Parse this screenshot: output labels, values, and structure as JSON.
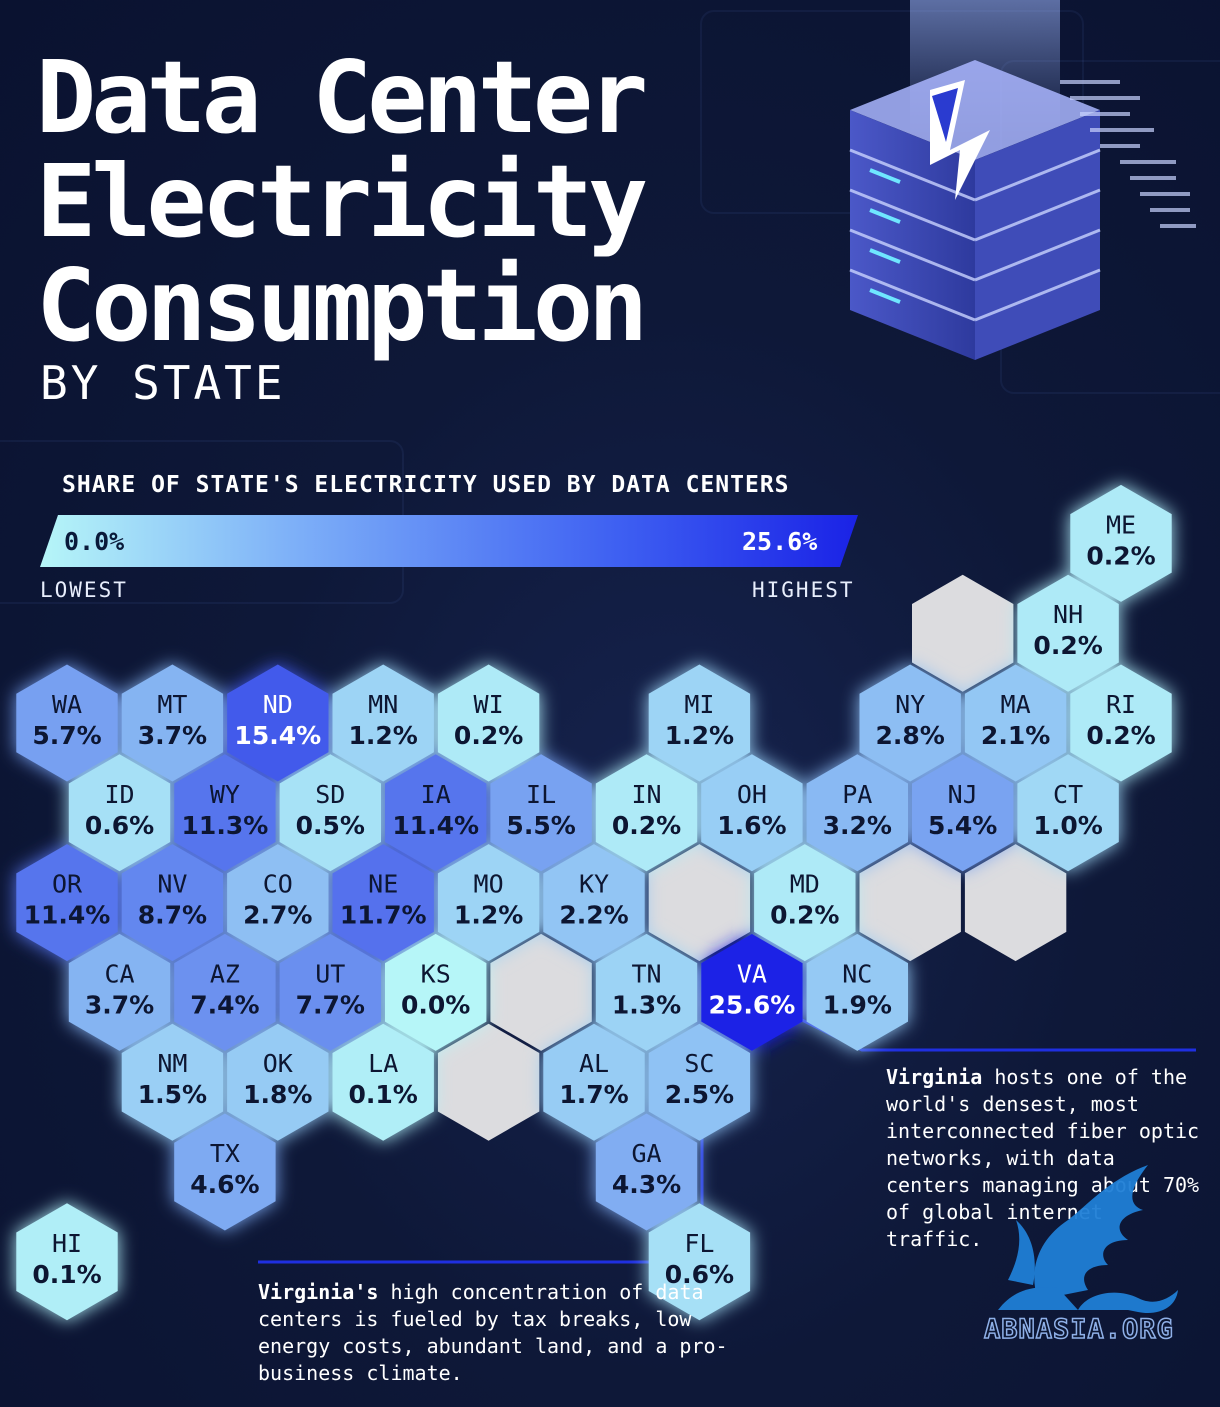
{
  "title": {
    "line1": "Data Center",
    "line2": "Electricity",
    "line3": "Consumption",
    "subtitle": "BY STATE"
  },
  "legend": {
    "title": "SHARE OF STATE'S ELECTRICITY USED BY DATA CENTERS",
    "min_label": "0.0%",
    "max_label": "25.6%",
    "low_text": "LOWEST",
    "high_text": "HIGHEST",
    "color_low": "#b6f6f8",
    "color_high": "#1a22e6"
  },
  "chart_data": {
    "type": "hex tile map",
    "title": "Data Center Electricity Consumption by State",
    "metric": "Share of state's electricity used by data centers (%)",
    "range": [
      0.0,
      25.6
    ],
    "states": [
      {
        "abbr": "ME",
        "value": "0.2%"
      },
      {
        "abbr": "NH",
        "value": "0.2%"
      },
      {
        "abbr": "WA",
        "value": "5.7%"
      },
      {
        "abbr": "MT",
        "value": "3.7%"
      },
      {
        "abbr": "ND",
        "value": "15.4%"
      },
      {
        "abbr": "MN",
        "value": "1.2%"
      },
      {
        "abbr": "WI",
        "value": "0.2%"
      },
      {
        "abbr": "MI",
        "value": "1.2%"
      },
      {
        "abbr": "NY",
        "value": "2.8%"
      },
      {
        "abbr": "MA",
        "value": "2.1%"
      },
      {
        "abbr": "RI",
        "value": "0.2%"
      },
      {
        "abbr": "ID",
        "value": "0.6%"
      },
      {
        "abbr": "WY",
        "value": "11.3%"
      },
      {
        "abbr": "SD",
        "value": "0.5%"
      },
      {
        "abbr": "IA",
        "value": "11.4%"
      },
      {
        "abbr": "IL",
        "value": "5.5%"
      },
      {
        "abbr": "IN",
        "value": "0.2%"
      },
      {
        "abbr": "OH",
        "value": "1.6%"
      },
      {
        "abbr": "PA",
        "value": "3.2%"
      },
      {
        "abbr": "NJ",
        "value": "5.4%"
      },
      {
        "abbr": "CT",
        "value": "1.0%"
      },
      {
        "abbr": "OR",
        "value": "11.4%"
      },
      {
        "abbr": "NV",
        "value": "8.7%"
      },
      {
        "abbr": "CO",
        "value": "2.7%"
      },
      {
        "abbr": "NE",
        "value": "11.7%"
      },
      {
        "abbr": "MO",
        "value": "1.2%"
      },
      {
        "abbr": "KY",
        "value": "2.2%"
      },
      {
        "abbr": "MD",
        "value": "0.2%"
      },
      {
        "abbr": "CA",
        "value": "3.7%"
      },
      {
        "abbr": "AZ",
        "value": "7.4%"
      },
      {
        "abbr": "UT",
        "value": "7.7%"
      },
      {
        "abbr": "KS",
        "value": "0.0%"
      },
      {
        "abbr": "TN",
        "value": "1.3%"
      },
      {
        "abbr": "VA",
        "value": "25.6%"
      },
      {
        "abbr": "NC",
        "value": "1.9%"
      },
      {
        "abbr": "NM",
        "value": "1.5%"
      },
      {
        "abbr": "OK",
        "value": "1.8%"
      },
      {
        "abbr": "LA",
        "value": "0.1%"
      },
      {
        "abbr": "AL",
        "value": "1.7%"
      },
      {
        "abbr": "SC",
        "value": "2.5%"
      },
      {
        "abbr": "GA",
        "value": "4.3%"
      },
      {
        "abbr": "TX",
        "value": "4.6%"
      },
      {
        "abbr": "FL",
        "value": "0.6%"
      },
      {
        "abbr": "HI",
        "value": "0.1%"
      }
    ]
  },
  "notes": {
    "right_bold": "Virginia",
    "right_text": " hosts one of the world's densest, most interconnected fiber optic networks, with data centers managing about 70% of global internet traffic.",
    "left_bold": "Virginia's",
    "left_text": " high concentration of data centers is fueled by tax breaks, low energy costs, abundant land, and a pro-business climate."
  },
  "watermark": {
    "text": "ABNASIA.ORG"
  }
}
